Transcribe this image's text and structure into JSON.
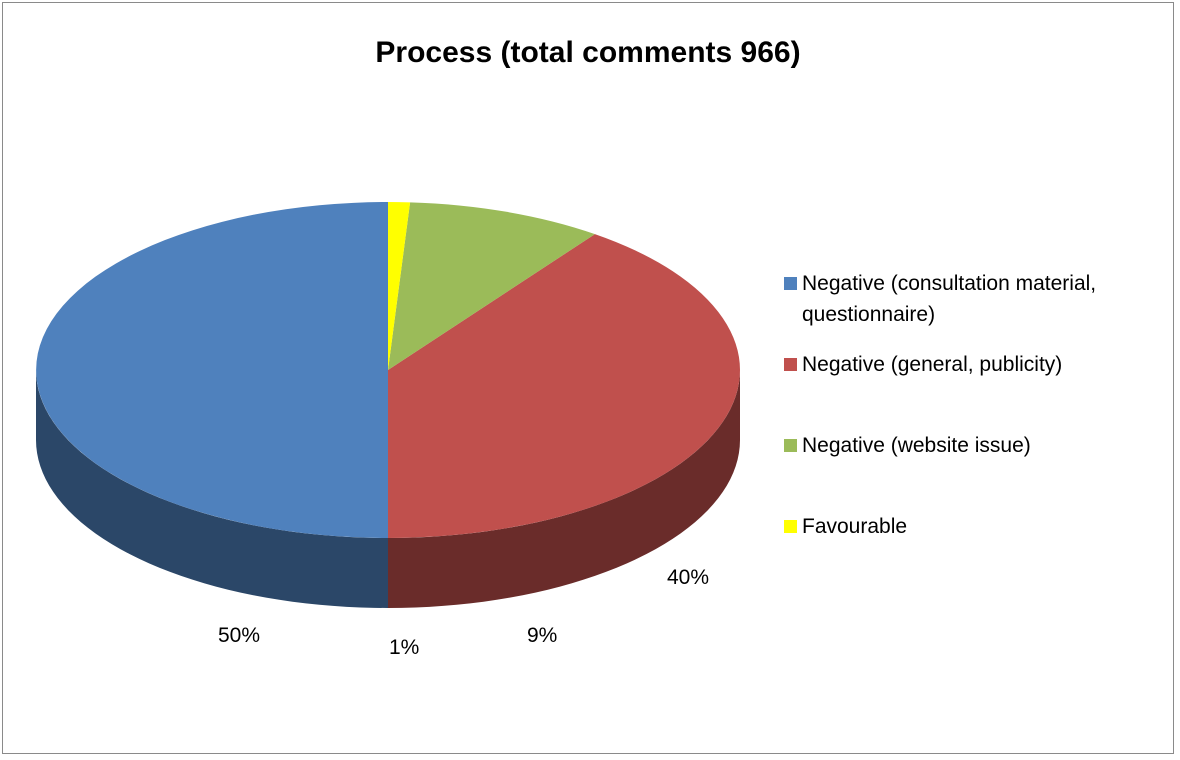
{
  "chart_data": {
    "type": "pie",
    "title": "Process (total comments 966)",
    "three_d": true,
    "legend_position": "right",
    "slices": [
      {
        "name": "Negative (consultation material, questionnaire)",
        "value": 50,
        "label": "50%",
        "color": "#4F81BD"
      },
      {
        "name": "Negative (general, publicity)",
        "value": 40,
        "label": "40%",
        "color": "#C0504D"
      },
      {
        "name": "Negative (website issue)",
        "value": 9,
        "label": "9%",
        "color": "#9BBB59"
      },
      {
        "name": "Favourable",
        "value": 1,
        "label": "1%",
        "color": "#FFFF00"
      }
    ]
  }
}
